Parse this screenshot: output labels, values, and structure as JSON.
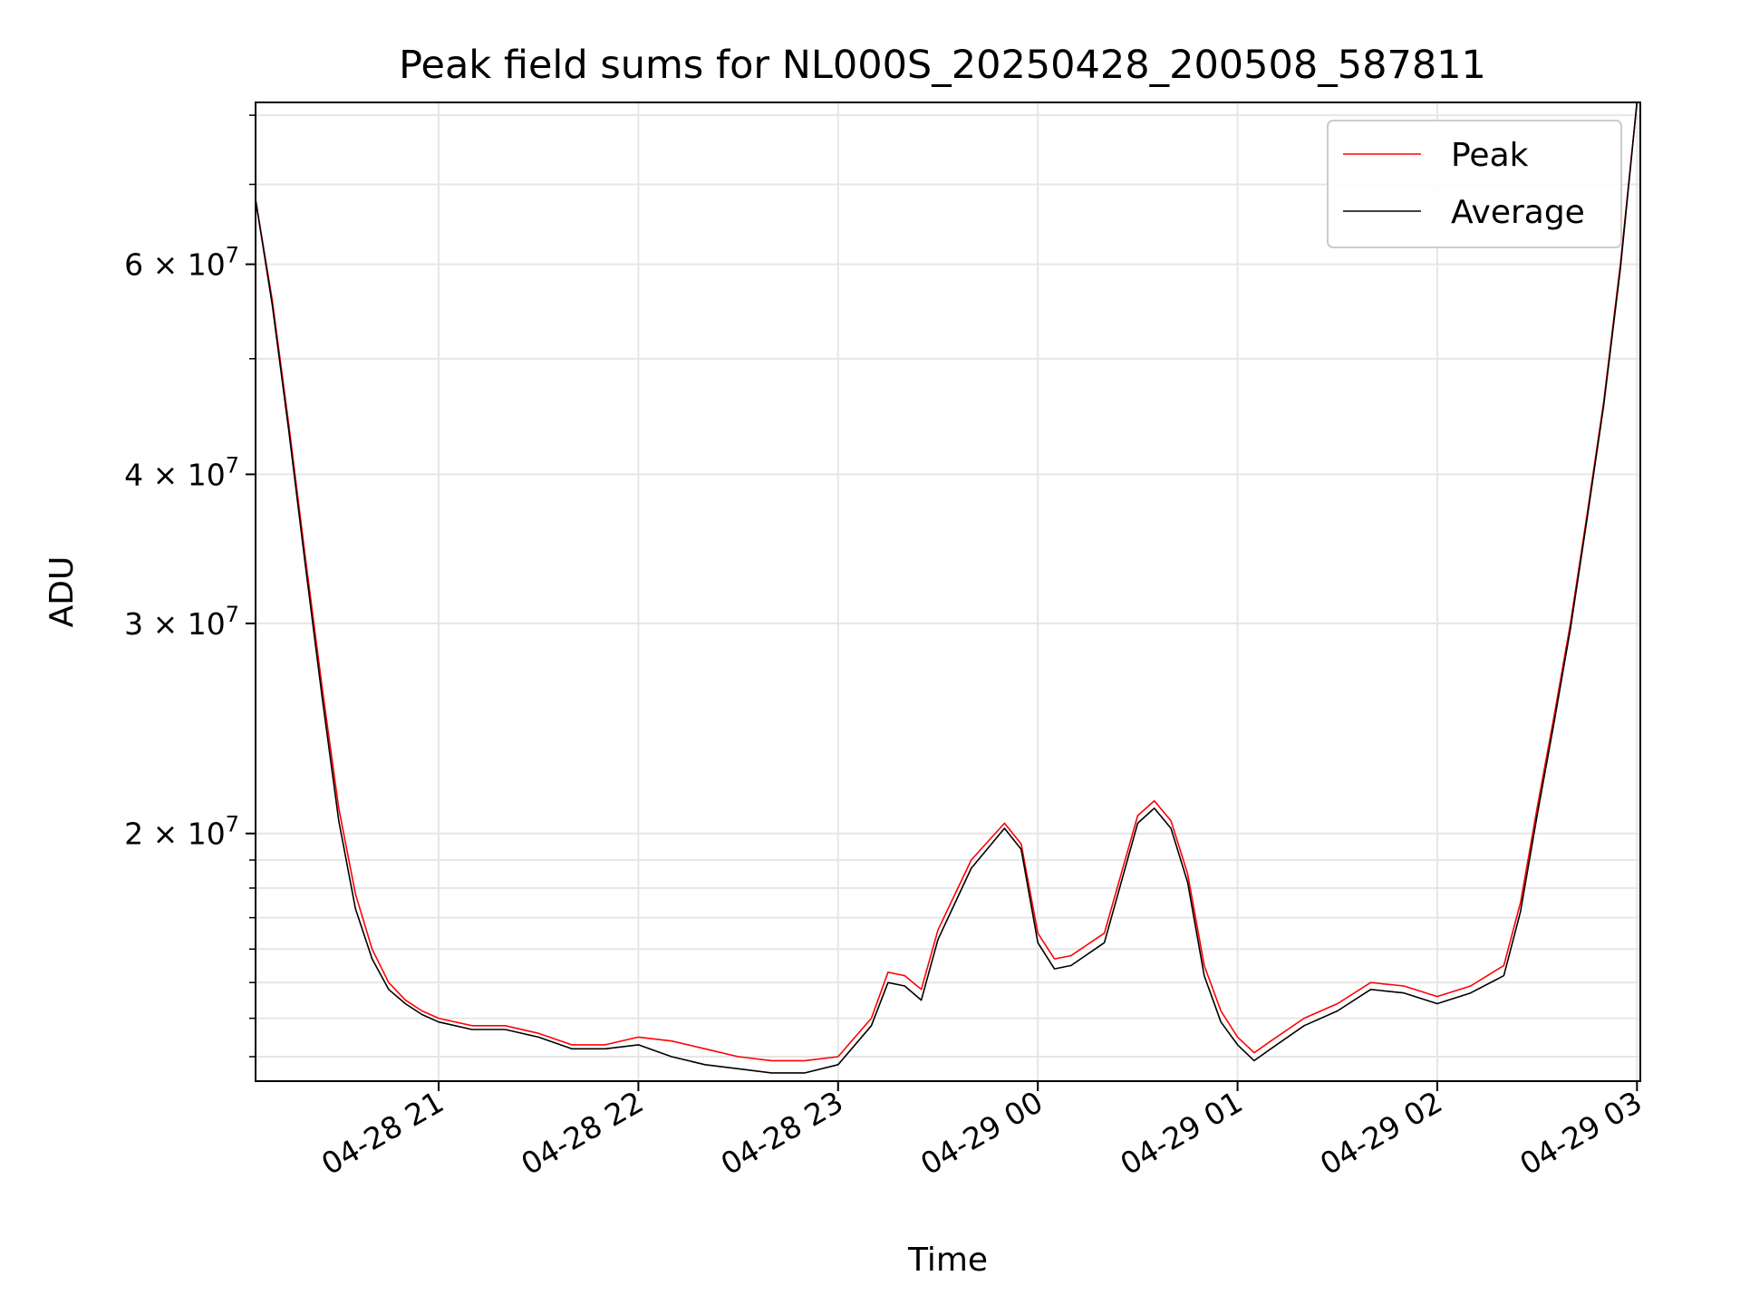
{
  "chart_data": {
    "type": "line",
    "title": "Peak field sums for NL000S_20250428_200508_587811",
    "xlabel": "Time",
    "ylabel": "ADU",
    "yscale": "log",
    "grid": true,
    "legend_position": "top-right",
    "xlim": [
      "2025-04-28 20:05",
      "2025-04-29 03:01"
    ],
    "ylim": [
      12400000,
      82000000
    ],
    "x_ticks": [
      "04-28 21",
      "04-28 22",
      "04-28 23",
      "04-29 00",
      "04-29 01",
      "04-29 02",
      "04-29 03"
    ],
    "y_ticks": [
      {
        "mantissa": "2",
        "exp": "7",
        "value": 20000000
      },
      {
        "mantissa": "3",
        "exp": "7",
        "value": 30000000
      },
      {
        "mantissa": "4",
        "exp": "7",
        "value": 40000000
      },
      {
        "mantissa": "6",
        "exp": "7",
        "value": 60000000
      }
    ],
    "series": [
      {
        "name": "Peak",
        "color": "#ff0000",
        "x": [
          "20:05",
          "20:10",
          "20:15",
          "20:20",
          "20:25",
          "20:30",
          "20:35",
          "20:40",
          "20:45",
          "20:50",
          "20:55",
          "21:00",
          "21:10",
          "21:20",
          "21:30",
          "21:40",
          "21:50",
          "22:00",
          "22:10",
          "22:20",
          "22:30",
          "22:40",
          "22:50",
          "23:00",
          "23:10",
          "23:15",
          "23:20",
          "23:25",
          "23:30",
          "23:40",
          "23:50",
          "23:55",
          "00:00",
          "00:05",
          "00:10",
          "00:20",
          "00:30",
          "00:35",
          "00:40",
          "00:45",
          "00:50",
          "00:55",
          "01:00",
          "01:05",
          "01:10",
          "01:20",
          "01:30",
          "01:40",
          "01:50",
          "02:00",
          "02:10",
          "02:20",
          "02:25",
          "02:30",
          "02:35",
          "02:40",
          "02:45",
          "02:50",
          "02:55",
          "03:00"
        ],
        "values": [
          68000000,
          56000000,
          44000000,
          34000000,
          26500000,
          21000000,
          17800000,
          16000000,
          15000000,
          14500000,
          14200000,
          14000000,
          13800000,
          13800000,
          13600000,
          13300000,
          13300000,
          13500000,
          13400000,
          13200000,
          13000000,
          12900000,
          12900000,
          13000000,
          14000000,
          15300000,
          15200000,
          14800000,
          16600000,
          19000000,
          20400000,
          19600000,
          16500000,
          15700000,
          15800000,
          16500000,
          20700000,
          21300000,
          20500000,
          18500000,
          15500000,
          14200000,
          13500000,
          13100000,
          13400000,
          14000000,
          14400000,
          15000000,
          14900000,
          14600000,
          14900000,
          15500000,
          17500000,
          21000000,
          25000000,
          30000000,
          37000000,
          46000000,
          60000000,
          82000000
        ]
      },
      {
        "name": "Average",
        "color": "#000000",
        "x": [
          "20:05",
          "20:10",
          "20:15",
          "20:20",
          "20:25",
          "20:30",
          "20:35",
          "20:40",
          "20:45",
          "20:50",
          "20:55",
          "21:00",
          "21:10",
          "21:20",
          "21:30",
          "21:40",
          "21:50",
          "22:00",
          "22:10",
          "22:20",
          "22:30",
          "22:40",
          "22:50",
          "23:00",
          "23:10",
          "23:15",
          "23:20",
          "23:25",
          "23:30",
          "23:40",
          "23:50",
          "23:55",
          "00:00",
          "00:05",
          "00:10",
          "00:20",
          "00:30",
          "00:35",
          "00:40",
          "00:45",
          "00:50",
          "00:55",
          "01:00",
          "01:05",
          "01:10",
          "01:20",
          "01:30",
          "01:40",
          "01:50",
          "02:00",
          "02:10",
          "02:20",
          "02:25",
          "02:30",
          "02:35",
          "02:40",
          "02:45",
          "02:50",
          "02:55",
          "03:00"
        ],
        "values": [
          68000000,
          55500000,
          43500000,
          33500000,
          26000000,
          20500000,
          17300000,
          15700000,
          14800000,
          14400000,
          14100000,
          13900000,
          13700000,
          13700000,
          13500000,
          13200000,
          13200000,
          13300000,
          13000000,
          12800000,
          12700000,
          12600000,
          12600000,
          12800000,
          13800000,
          15000000,
          14900000,
          14500000,
          16300000,
          18700000,
          20200000,
          19400000,
          16200000,
          15400000,
          15500000,
          16200000,
          20400000,
          21000000,
          20200000,
          18200000,
          15200000,
          13900000,
          13300000,
          12900000,
          13200000,
          13800000,
          14200000,
          14800000,
          14700000,
          14400000,
          14700000,
          15200000,
          17200000,
          20700000,
          24700000,
          29700000,
          36700000,
          45700000,
          59500000,
          82000000
        ]
      }
    ]
  }
}
